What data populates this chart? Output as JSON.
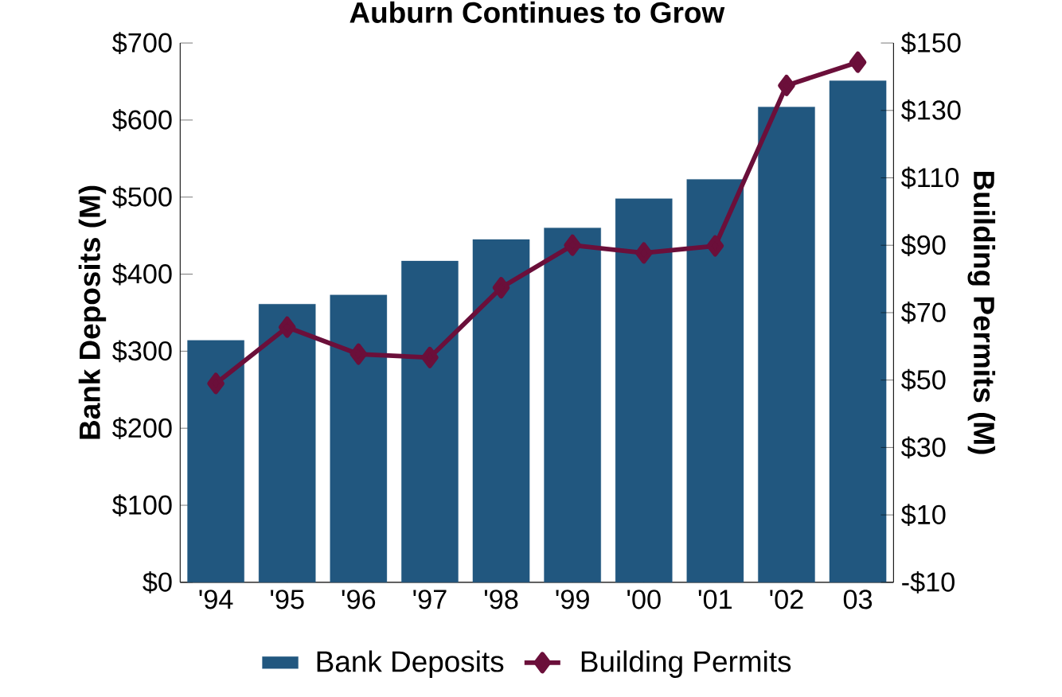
{
  "chart_data": {
    "type": "bar",
    "title": "Auburn Continues to Grow",
    "ylabel": "Bank Deposits (M)",
    "y2label": "Building Permits (M)",
    "categories": [
      "'94",
      "'95",
      "'96",
      "'97",
      "'98",
      "'99",
      "'00",
      "'01",
      "'02",
      "03"
    ],
    "series": [
      {
        "name": "Bank Deposits",
        "color": "#21577f",
        "values": [
          314,
          361,
          373,
          417,
          445,
          460,
          498,
          523,
          617,
          651
        ]
      },
      {
        "name": "Building Permits",
        "type": "line",
        "axis": "y2",
        "color": "#6b0f3a",
        "marker": "diamond",
        "values": [
          49,
          65.7,
          57.7,
          56.7,
          77.4,
          90,
          87.7,
          89.8,
          137.4,
          144.3
        ]
      }
    ],
    "ylim": [
      0,
      700
    ],
    "yticks": [
      {
        "value": 0,
        "label": "$0"
      },
      {
        "value": 100,
        "label": "$100"
      },
      {
        "value": 200,
        "label": "$200"
      },
      {
        "value": 300,
        "label": "$300"
      },
      {
        "value": 400,
        "label": "$400"
      },
      {
        "value": 500,
        "label": "$500"
      },
      {
        "value": 600,
        "label": "$600"
      },
      {
        "value": 700,
        "label": "$700"
      }
    ],
    "y2lim": [
      -10,
      150
    ],
    "y2ticks": [
      {
        "value": -10,
        "label": "-$10"
      },
      {
        "value": 10,
        "label": "$10"
      },
      {
        "value": 30,
        "label": "$30"
      },
      {
        "value": 50,
        "label": "$50"
      },
      {
        "value": 70,
        "label": "$70"
      },
      {
        "value": 90,
        "label": "$90"
      },
      {
        "value": 110,
        "label": "$110"
      },
      {
        "value": 130,
        "label": "$130"
      },
      {
        "value": 150,
        "label": "$150"
      }
    ],
    "legend": "bottom",
    "grid": false
  }
}
